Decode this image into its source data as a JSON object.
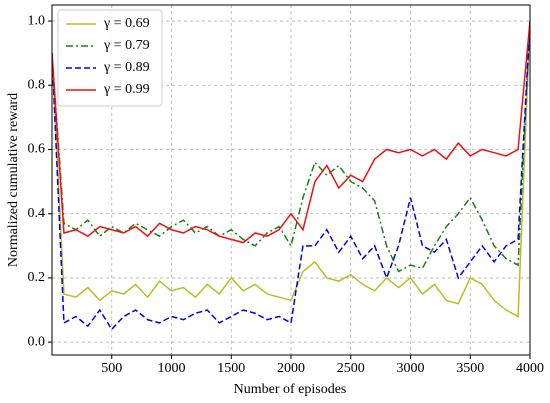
{
  "chart_data": {
    "type": "line",
    "xlabel": "Number of episodes",
    "ylabel": "Normalized cumulative reward",
    "x": [
      0,
      100,
      200,
      300,
      400,
      500,
      600,
      700,
      800,
      900,
      1000,
      1100,
      1200,
      1300,
      1400,
      1500,
      1600,
      1700,
      1800,
      1900,
      2000,
      2100,
      2200,
      2300,
      2400,
      2500,
      2600,
      2700,
      2800,
      2900,
      3000,
      3100,
      3200,
      3300,
      3400,
      3500,
      3600,
      3700,
      3800,
      3900,
      4000
    ],
    "series": [
      {
        "name": "γ = 0.69",
        "color": "#bcbd22",
        "dash": "solid",
        "values": [
          0.9,
          0.15,
          0.14,
          0.17,
          0.13,
          0.16,
          0.15,
          0.18,
          0.14,
          0.19,
          0.16,
          0.17,
          0.14,
          0.18,
          0.15,
          0.2,
          0.16,
          0.18,
          0.15,
          0.14,
          0.13,
          0.22,
          0.25,
          0.2,
          0.19,
          0.21,
          0.18,
          0.16,
          0.2,
          0.17,
          0.2,
          0.15,
          0.18,
          0.13,
          0.12,
          0.2,
          0.18,
          0.13,
          0.1,
          0.08,
          1.0
        ]
      },
      {
        "name": "γ = 0.79",
        "color": "#1a7f1a",
        "dash": "dashdot",
        "values": [
          0.9,
          0.37,
          0.35,
          0.38,
          0.33,
          0.36,
          0.34,
          0.37,
          0.35,
          0.33,
          0.36,
          0.38,
          0.34,
          0.36,
          0.33,
          0.35,
          0.32,
          0.3,
          0.34,
          0.36,
          0.3,
          0.45,
          0.56,
          0.52,
          0.55,
          0.5,
          0.48,
          0.44,
          0.3,
          0.22,
          0.24,
          0.23,
          0.3,
          0.36,
          0.4,
          0.45,
          0.38,
          0.3,
          0.26,
          0.24,
          1.0
        ]
      },
      {
        "name": "γ = 0.89",
        "color": "#0000ee",
        "dash": "dashed",
        "values": [
          0.9,
          0.06,
          0.08,
          0.05,
          0.1,
          0.04,
          0.08,
          0.1,
          0.07,
          0.06,
          0.08,
          0.07,
          0.09,
          0.1,
          0.06,
          0.08,
          0.1,
          0.09,
          0.07,
          0.08,
          0.06,
          0.3,
          0.3,
          0.35,
          0.28,
          0.33,
          0.26,
          0.3,
          0.2,
          0.3,
          0.45,
          0.3,
          0.28,
          0.32,
          0.2,
          0.25,
          0.3,
          0.25,
          0.3,
          0.32,
          1.0
        ]
      },
      {
        "name": "γ = 0.99",
        "color": "#ee1111",
        "dash": "solid",
        "values": [
          0.9,
          0.34,
          0.35,
          0.33,
          0.36,
          0.35,
          0.34,
          0.36,
          0.33,
          0.37,
          0.35,
          0.34,
          0.36,
          0.35,
          0.33,
          0.32,
          0.31,
          0.34,
          0.33,
          0.35,
          0.4,
          0.35,
          0.5,
          0.55,
          0.48,
          0.52,
          0.5,
          0.57,
          0.6,
          0.59,
          0.6,
          0.58,
          0.6,
          0.57,
          0.62,
          0.58,
          0.6,
          0.59,
          0.58,
          0.6,
          1.0
        ]
      }
    ],
    "xlim": [
      0,
      4000
    ],
    "xticks": [
      500,
      1000,
      1500,
      2000,
      2500,
      3000,
      3500,
      4000
    ],
    "ylim": [
      -0.04,
      1.05
    ],
    "yticks": [
      {
        "value": 0,
        "label": "0.0"
      },
      {
        "value": 0.2,
        "label": "0.2"
      },
      {
        "value": 0.4,
        "label": "0.4"
      },
      {
        "value": 0.6,
        "label": "0.6"
      },
      {
        "value": 0.8,
        "label": "0.8"
      },
      {
        "value": 1,
        "label": "1.0"
      }
    ],
    "grid": true,
    "legend": "upper left"
  }
}
